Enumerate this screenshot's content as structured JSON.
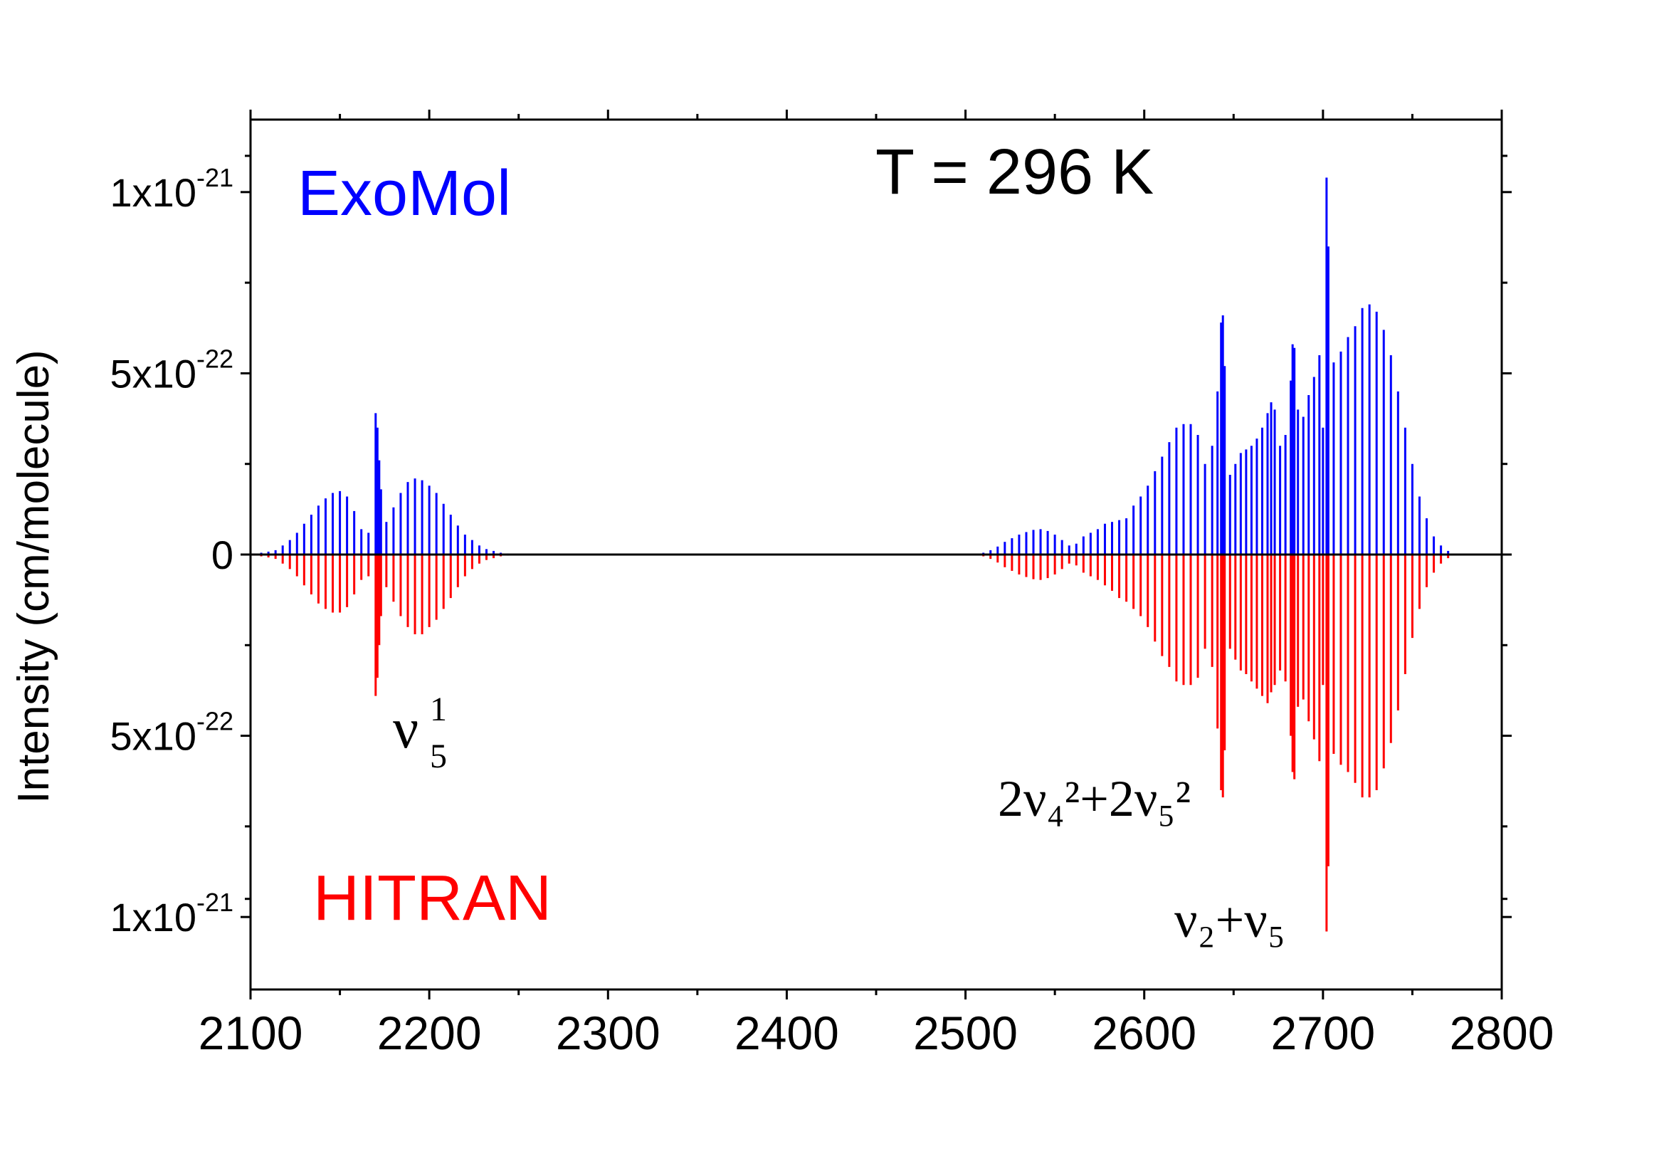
{
  "chart_data": {
    "type": "line",
    "title": "",
    "temperature_label": "T = 296 K",
    "xlabel": "",
    "ylabel": "Intensity (cm/molecule)",
    "xlim": [
      2100,
      2800
    ],
    "ylim": [
      -1.2e-21,
      1.2e-21
    ],
    "x_ticks": [
      2100,
      2200,
      2300,
      2400,
      2500,
      2600,
      2700,
      2800
    ],
    "x_tick_labels": [
      "2100",
      "2200",
      "2300",
      "2400",
      "2500",
      "2600",
      "2700",
      "2800"
    ],
    "y_ticks": [
      {
        "value": 1e-21,
        "mantissa": "1x10",
        "exponent": "-21"
      },
      {
        "value": 5e-22,
        "mantissa": "5x10",
        "exponent": "-22"
      },
      {
        "value": 0,
        "mantissa": "0",
        "exponent": ""
      },
      {
        "value": -5e-22,
        "mantissa": "5x10",
        "exponent": "-22"
      },
      {
        "value": -1e-21,
        "mantissa": "1x10",
        "exponent": "-21"
      }
    ],
    "legend": [
      {
        "name": "ExoMol",
        "color": "#0000ff",
        "direction": "up"
      },
      {
        "name": "HITRAN",
        "color": "#ff0000",
        "direction": "down"
      }
    ],
    "band_annotations": [
      {
        "id": "nu5",
        "base": "ν",
        "sup": "1",
        "sub": "5",
        "x": 2170
      },
      {
        "id": "combo",
        "text": "2ν₄²+2ν₅²",
        "x": 2643
      },
      {
        "id": "nu2nu5",
        "text": "ν₂+ν₅",
        "x": 2702
      }
    ],
    "series": [
      {
        "name": "ExoMol",
        "color": "#0000ff",
        "sign": 1,
        "unit": "1e-22 cm/molecule",
        "peaks": [
          [
            2102,
            0.03
          ],
          [
            2106,
            0.05
          ],
          [
            2110,
            0.08
          ],
          [
            2114,
            0.12
          ],
          [
            2118,
            0.25
          ],
          [
            2122,
            0.4
          ],
          [
            2126,
            0.6
          ],
          [
            2130,
            0.85
          ],
          [
            2134,
            1.1
          ],
          [
            2138,
            1.35
          ],
          [
            2142,
            1.55
          ],
          [
            2146,
            1.7
          ],
          [
            2150,
            1.75
          ],
          [
            2154,
            1.6
          ],
          [
            2158,
            1.2
          ],
          [
            2162,
            0.7
          ],
          [
            2166,
            0.6
          ],
          [
            2170,
            3.9
          ],
          [
            2171,
            3.5
          ],
          [
            2172,
            2.6
          ],
          [
            2173,
            1.8
          ],
          [
            2176,
            0.9
          ],
          [
            2180,
            1.3
          ],
          [
            2184,
            1.7
          ],
          [
            2188,
            2.0
          ],
          [
            2192,
            2.1
          ],
          [
            2196,
            2.05
          ],
          [
            2200,
            1.9
          ],
          [
            2204,
            1.7
          ],
          [
            2208,
            1.4
          ],
          [
            2212,
            1.1
          ],
          [
            2216,
            0.8
          ],
          [
            2220,
            0.55
          ],
          [
            2224,
            0.4
          ],
          [
            2228,
            0.25
          ],
          [
            2232,
            0.15
          ],
          [
            2236,
            0.1
          ],
          [
            2240,
            0.05
          ],
          [
            2244,
            0.03
          ],
          [
            2248,
            0.02
          ],
          [
            2505,
            0.02
          ],
          [
            2510,
            0.05
          ],
          [
            2514,
            0.12
          ],
          [
            2518,
            0.22
          ],
          [
            2522,
            0.35
          ],
          [
            2526,
            0.45
          ],
          [
            2530,
            0.55
          ],
          [
            2534,
            0.62
          ],
          [
            2538,
            0.68
          ],
          [
            2542,
            0.7
          ],
          [
            2546,
            0.65
          ],
          [
            2550,
            0.55
          ],
          [
            2554,
            0.4
          ],
          [
            2558,
            0.25
          ],
          [
            2562,
            0.3
          ],
          [
            2566,
            0.5
          ],
          [
            2570,
            0.6
          ],
          [
            2574,
            0.7
          ],
          [
            2578,
            0.85
          ],
          [
            2582,
            0.9
          ],
          [
            2586,
            0.95
          ],
          [
            2590,
            1.0
          ],
          [
            2594,
            1.35
          ],
          [
            2598,
            1.6
          ],
          [
            2602,
            1.9
          ],
          [
            2606,
            2.3
          ],
          [
            2610,
            2.7
          ],
          [
            2614,
            3.1
          ],
          [
            2618,
            3.5
          ],
          [
            2622,
            3.6
          ],
          [
            2626,
            3.6
          ],
          [
            2630,
            3.3
          ],
          [
            2634,
            2.5
          ],
          [
            2638,
            3.0
          ],
          [
            2641,
            4.5
          ],
          [
            2643,
            6.4
          ],
          [
            2644,
            6.6
          ],
          [
            2645,
            5.2
          ],
          [
            2648,
            2.2
          ],
          [
            2651,
            2.5
          ],
          [
            2654,
            2.8
          ],
          [
            2657,
            2.9
          ],
          [
            2660,
            3.0
          ],
          [
            2663,
            3.2
          ],
          [
            2666,
            3.5
          ],
          [
            2669,
            3.9
          ],
          [
            2671,
            4.2
          ],
          [
            2673,
            4.0
          ],
          [
            2676,
            3.0
          ],
          [
            2679,
            3.3
          ],
          [
            2682,
            4.8
          ],
          [
            2683,
            5.8
          ],
          [
            2684,
            5.7
          ],
          [
            2686,
            4.0
          ],
          [
            2689,
            3.8
          ],
          [
            2692,
            4.4
          ],
          [
            2695,
            4.9
          ],
          [
            2698,
            5.5
          ],
          [
            2700,
            3.5
          ],
          [
            2702,
            10.4
          ],
          [
            2703,
            8.5
          ],
          [
            2706,
            5.3
          ],
          [
            2710,
            5.6
          ],
          [
            2714,
            6.0
          ],
          [
            2718,
            6.3
          ],
          [
            2722,
            6.8
          ],
          [
            2726,
            6.9
          ],
          [
            2730,
            6.7
          ],
          [
            2734,
            6.2
          ],
          [
            2738,
            5.5
          ],
          [
            2742,
            4.5
          ],
          [
            2746,
            3.5
          ],
          [
            2750,
            2.5
          ],
          [
            2754,
            1.6
          ],
          [
            2758,
            1.0
          ],
          [
            2762,
            0.5
          ],
          [
            2766,
            0.25
          ],
          [
            2770,
            0.1
          ]
        ]
      },
      {
        "name": "HITRAN",
        "color": "#ff0000",
        "sign": -1,
        "unit": "1e-22 cm/molecule",
        "peaks": [
          [
            2102,
            0.03
          ],
          [
            2106,
            0.05
          ],
          [
            2110,
            0.08
          ],
          [
            2114,
            0.12
          ],
          [
            2118,
            0.25
          ],
          [
            2122,
            0.4
          ],
          [
            2126,
            0.6
          ],
          [
            2130,
            0.85
          ],
          [
            2134,
            1.1
          ],
          [
            2138,
            1.35
          ],
          [
            2142,
            1.5
          ],
          [
            2146,
            1.6
          ],
          [
            2150,
            1.6
          ],
          [
            2154,
            1.45
          ],
          [
            2158,
            1.1
          ],
          [
            2162,
            0.7
          ],
          [
            2166,
            0.6
          ],
          [
            2170,
            3.9
          ],
          [
            2171,
            3.4
          ],
          [
            2172,
            2.5
          ],
          [
            2173,
            1.7
          ],
          [
            2176,
            0.9
          ],
          [
            2180,
            1.3
          ],
          [
            2184,
            1.7
          ],
          [
            2188,
            2.0
          ],
          [
            2192,
            2.2
          ],
          [
            2196,
            2.2
          ],
          [
            2200,
            2.0
          ],
          [
            2204,
            1.8
          ],
          [
            2208,
            1.5
          ],
          [
            2212,
            1.2
          ],
          [
            2216,
            0.9
          ],
          [
            2220,
            0.6
          ],
          [
            2224,
            0.4
          ],
          [
            2228,
            0.25
          ],
          [
            2232,
            0.15
          ],
          [
            2236,
            0.1
          ],
          [
            2240,
            0.05
          ],
          [
            2244,
            0.03
          ],
          [
            2248,
            0.02
          ],
          [
            2505,
            0.02
          ],
          [
            2510,
            0.05
          ],
          [
            2514,
            0.12
          ],
          [
            2518,
            0.22
          ],
          [
            2522,
            0.35
          ],
          [
            2526,
            0.45
          ],
          [
            2530,
            0.55
          ],
          [
            2534,
            0.62
          ],
          [
            2538,
            0.68
          ],
          [
            2542,
            0.7
          ],
          [
            2546,
            0.65
          ],
          [
            2550,
            0.55
          ],
          [
            2554,
            0.4
          ],
          [
            2558,
            0.25
          ],
          [
            2562,
            0.3
          ],
          [
            2566,
            0.5
          ],
          [
            2570,
            0.6
          ],
          [
            2574,
            0.7
          ],
          [
            2578,
            0.85
          ],
          [
            2582,
            1.0
          ],
          [
            2586,
            1.2
          ],
          [
            2590,
            1.3
          ],
          [
            2594,
            1.5
          ],
          [
            2598,
            1.7
          ],
          [
            2602,
            2.0
          ],
          [
            2606,
            2.4
          ],
          [
            2610,
            2.8
          ],
          [
            2614,
            3.1
          ],
          [
            2618,
            3.5
          ],
          [
            2622,
            3.6
          ],
          [
            2626,
            3.6
          ],
          [
            2630,
            3.4
          ],
          [
            2634,
            2.6
          ],
          [
            2638,
            3.1
          ],
          [
            2641,
            4.8
          ],
          [
            2643,
            6.5
          ],
          [
            2644,
            6.7
          ],
          [
            2645,
            5.4
          ],
          [
            2648,
            2.6
          ],
          [
            2651,
            2.9
          ],
          [
            2654,
            3.2
          ],
          [
            2657,
            3.3
          ],
          [
            2660,
            3.5
          ],
          [
            2663,
            3.7
          ],
          [
            2666,
            3.9
          ],
          [
            2669,
            4.1
          ],
          [
            2671,
            3.8
          ],
          [
            2673,
            3.6
          ],
          [
            2676,
            3.2
          ],
          [
            2679,
            3.5
          ],
          [
            2682,
            5.0
          ],
          [
            2683,
            6.0
          ],
          [
            2684,
            6.2
          ],
          [
            2686,
            4.2
          ],
          [
            2689,
            4.0
          ],
          [
            2692,
            4.6
          ],
          [
            2695,
            5.1
          ],
          [
            2698,
            5.7
          ],
          [
            2700,
            3.6
          ],
          [
            2702,
            10.4
          ],
          [
            2703,
            8.6
          ],
          [
            2706,
            5.5
          ],
          [
            2710,
            5.8
          ],
          [
            2714,
            6.0
          ],
          [
            2718,
            6.3
          ],
          [
            2722,
            6.7
          ],
          [
            2726,
            6.7
          ],
          [
            2730,
            6.5
          ],
          [
            2734,
            5.9
          ],
          [
            2738,
            5.2
          ],
          [
            2742,
            4.3
          ],
          [
            2746,
            3.3
          ],
          [
            2750,
            2.3
          ],
          [
            2754,
            1.5
          ],
          [
            2758,
            0.9
          ],
          [
            2762,
            0.5
          ],
          [
            2766,
            0.25
          ],
          [
            2770,
            0.1
          ]
        ]
      }
    ]
  }
}
